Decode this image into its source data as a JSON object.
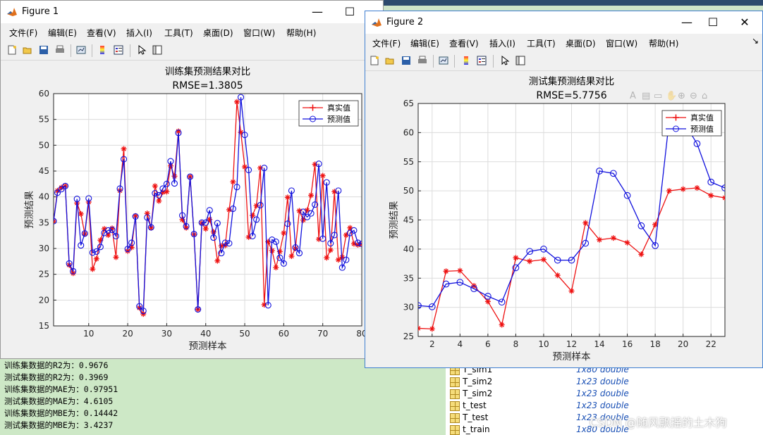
{
  "console_lines": [
    "训练集数据的R2为：0.9676",
    "测试集数据的R2为：0.3969",
    "训练集数据的MAE为：0.97951",
    "测试集数据的MAE为：4.6105",
    "训练集数据的MBE为：0.14442",
    "测试集数据的MBE为：3.4237"
  ],
  "workspace": [
    {
      "name": "T_sim1",
      "value": "1x80 double"
    },
    {
      "name": "T_sim2",
      "value": "1x23 double"
    },
    {
      "name": "T_sim2",
      "value": "1x23 double"
    },
    {
      "name": "t_test",
      "value": "1x23 double"
    },
    {
      "name": "T_test",
      "value": "1x23 double"
    },
    {
      "name": "t_train",
      "value": "1x80 double"
    }
  ],
  "watermark": "CSDN @随风飘摇的土木狗",
  "figure1": {
    "window_title": "Figure 1",
    "menu": [
      "文件(F)",
      "编辑(E)",
      "查看(V)",
      "插入(I)",
      "工具(T)",
      "桌面(D)",
      "窗口(W)",
      "帮助(H)"
    ]
  },
  "figure2": {
    "window_title": "Figure 2",
    "menu": [
      "文件(F)",
      "编辑(E)",
      "查看(V)",
      "插入(I)",
      "工具(T)",
      "桌面(D)",
      "窗口(W)",
      "帮助(H)"
    ]
  },
  "colors": {
    "true_series": "#ee1111",
    "pred_series": "#1111dd"
  },
  "chart_data": [
    {
      "type": "line",
      "title": "训练集预测结果对比",
      "subtitle": "RMSE=1.3805",
      "xlabel": "预测样本",
      "ylabel": "预测结果",
      "xlim": [
        1,
        80
      ],
      "ylim": [
        15,
        60
      ],
      "xticks": [
        10,
        20,
        30,
        40,
        50,
        60,
        70,
        80
      ],
      "yticks": [
        15,
        20,
        25,
        30,
        35,
        40,
        45,
        50,
        55,
        60
      ],
      "grid": true,
      "legend_position": "top-right",
      "series": [
        {
          "name": "真实值",
          "marker": "asterisk",
          "values": [
            35.3,
            41.2,
            41.8,
            42.1,
            26.8,
            25.2,
            38.8,
            36.7,
            32.8,
            39.0,
            26.0,
            28.0,
            31.6,
            33.8,
            32.6,
            33.9,
            28.3,
            41.2,
            49.3,
            29.5,
            30.2,
            36.3,
            18.5,
            17.3,
            36.8,
            34.0,
            42.1,
            39.2,
            40.9,
            41.0,
            46.0,
            44.0,
            52.7,
            35.6,
            34.0,
            43.9,
            32.7,
            18.2,
            34.9,
            33.8,
            35.6,
            33.2,
            27.6,
            30.5,
            30.6,
            37.5,
            42.9,
            58.4,
            52.5,
            45.8,
            32.2,
            36.4,
            38.3,
            45.6,
            19.1,
            31.3,
            29.6,
            26.3,
            29.4,
            33.0,
            39.9,
            28.5,
            30.0,
            37.3,
            35.5,
            37.4,
            40.3,
            46.3,
            31.8,
            44.1,
            28.2,
            29.7,
            41.0,
            27.8,
            28.3,
            32.6,
            34.0,
            30.9,
            30.7,
            30.8
          ]
        },
        {
          "name": "预测值",
          "marker": "circle",
          "values": [
            35.3,
            40.8,
            41.5,
            42.1,
            27.1,
            25.6,
            39.6,
            30.6,
            32.9,
            39.7,
            29.2,
            29.4,
            30.3,
            33.0,
            33.5,
            33.6,
            32.4,
            41.6,
            47.3,
            29.9,
            31.1,
            36.2,
            18.8,
            17.9,
            36.0,
            34.1,
            40.7,
            40.3,
            41.6,
            42.5,
            46.9,
            42.6,
            52.4,
            36.4,
            34.3,
            43.9,
            32.8,
            18.2,
            35.0,
            35.0,
            37.4,
            32.1,
            34.9,
            29.1,
            31.1,
            31.0,
            37.7,
            41.9,
            59.3,
            52.0,
            45.2,
            32.4,
            35.6,
            38.4,
            45.6,
            19.0,
            31.7,
            31.3,
            28.2,
            27.1,
            34.8,
            41.2,
            30.2,
            29.1,
            37.1,
            36.1,
            36.8,
            38.5,
            46.4,
            31.9,
            42.8,
            31.0,
            32.6,
            41.2,
            26.3,
            27.8,
            33.0,
            33.5,
            31.1,
            30.9
          ]
        }
      ]
    },
    {
      "type": "line",
      "title": "测试集预测结果对比",
      "subtitle": "RMSE=5.7756",
      "xlabel": "预测样本",
      "ylabel": "预测结果",
      "xlim": [
        1,
        23
      ],
      "ylim": [
        25,
        65
      ],
      "xticks": [
        2,
        4,
        6,
        8,
        10,
        12,
        14,
        16,
        18,
        20,
        22
      ],
      "yticks": [
        25,
        30,
        35,
        40,
        45,
        50,
        55,
        60,
        65
      ],
      "grid": true,
      "legend_position": "top-right",
      "series": [
        {
          "name": "真实值",
          "marker": "asterisk",
          "values": [
            26.4,
            26.3,
            36.2,
            36.3,
            33.7,
            31.0,
            27.0,
            38.5,
            37.9,
            38.2,
            35.5,
            32.8,
            44.5,
            41.6,
            41.9,
            41.1,
            39.1,
            44.2,
            50.0,
            50.3,
            50.5,
            49.2,
            48.8
          ]
        },
        {
          "name": "预测值",
          "marker": "circle",
          "values": [
            30.3,
            30.1,
            34.0,
            34.3,
            33.2,
            31.9,
            30.9,
            36.8,
            39.6,
            40.0,
            38.1,
            38.1,
            41.0,
            53.4,
            53.0,
            49.2,
            44.0,
            40.6,
            62.0,
            62.0,
            58.1,
            51.5,
            50.5
          ]
        }
      ]
    }
  ]
}
